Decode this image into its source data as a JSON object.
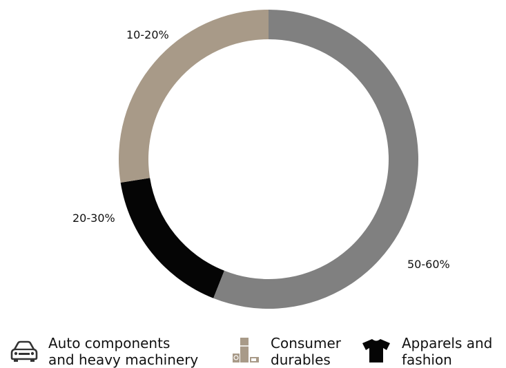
{
  "chart_data": {
    "type": "pie",
    "donut": true,
    "categories": [
      "Apparels and fashion",
      "Consumer durables",
      "Auto components and heavy machinery"
    ],
    "series": [
      {
        "values": [
          16.5,
          27.5,
          56.0
        ],
        "labels": [
          "10-20%",
          "20-30%",
          "50-60%"
        ]
      }
    ],
    "colors": [
      "#050505",
      "#a89a88",
      "#808080"
    ],
    "legend_position": "bottom"
  },
  "legend": [
    {
      "icon": "car-icon",
      "line1": "Auto components",
      "line2": "and heavy machinery",
      "color": "#808080"
    },
    {
      "icon": "appliances-icon",
      "line1": "Consumer",
      "line2": "durables",
      "color": "#a89a88"
    },
    {
      "icon": "tshirt-icon",
      "line1": "Apparels and",
      "line2": "fashion",
      "color": "#050505"
    }
  ]
}
